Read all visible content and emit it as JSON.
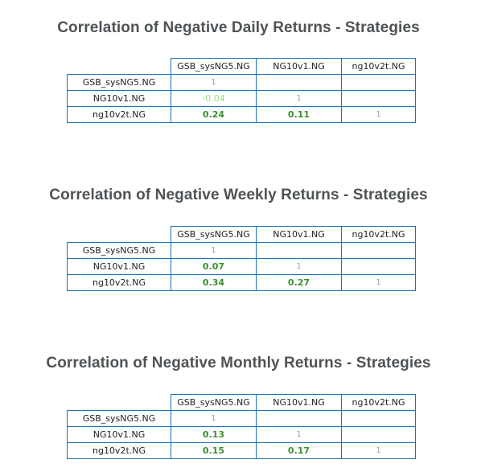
{
  "columns": [
    "GSB_sysNG5.NG",
    "NG10v1.NG",
    "ng10v2t.NG"
  ],
  "sections": [
    {
      "title": "Correlation of Negative Daily Returns - Strategies",
      "rows": [
        {
          "label": "GSB_sysNG5.NG",
          "values": [
            "1",
            "",
            ""
          ]
        },
        {
          "label": "NG10v1.NG",
          "values": [
            "-0.04",
            "1",
            ""
          ]
        },
        {
          "label": "ng10v2t.NG",
          "values": [
            "0.24",
            "0.11",
            "1"
          ]
        }
      ]
    },
    {
      "title": "Correlation of Negative Weekly Returns - Strategies",
      "rows": [
        {
          "label": "GSB_sysNG5.NG",
          "values": [
            "1",
            "",
            ""
          ]
        },
        {
          "label": "NG10v1.NG",
          "values": [
            "0.07",
            "1",
            ""
          ]
        },
        {
          "label": "ng10v2t.NG",
          "values": [
            "0.34",
            "0.27",
            "1"
          ]
        }
      ]
    },
    {
      "title": "Correlation of Negative Monthly Returns - Strategies",
      "rows": [
        {
          "label": "GSB_sysNG5.NG",
          "values": [
            "1",
            "",
            ""
          ]
        },
        {
          "label": "NG10v1.NG",
          "values": [
            "0.13",
            "1",
            ""
          ]
        },
        {
          "label": "ng10v2t.NG",
          "values": [
            "0.15",
            "0.17",
            "1"
          ]
        }
      ]
    }
  ],
  "colors": {
    "title": "#4f5356",
    "border": "#1f72b5",
    "positive": "#3c8f2f",
    "negative": "#9ddc88",
    "diagonal": "#9aa3a8"
  }
}
